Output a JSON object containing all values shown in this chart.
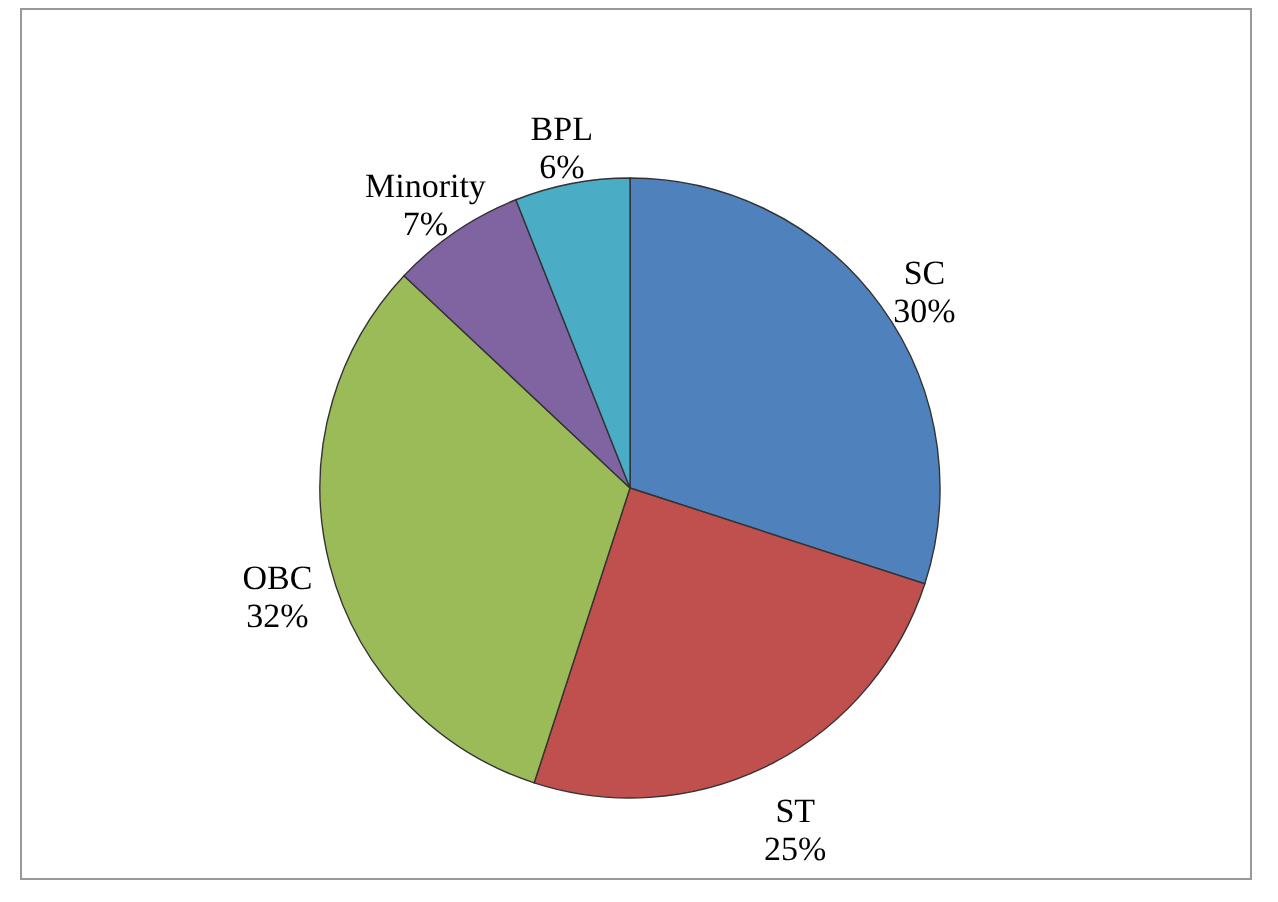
{
  "chart_data": {
    "type": "pie",
    "categories": [
      "SC",
      "ST",
      "OBC",
      "Minority",
      "BPL"
    ],
    "values": [
      30,
      25,
      32,
      7,
      6
    ],
    "colors": [
      "#4f81bd",
      "#c0504d",
      "#9bbb59",
      "#8064a2",
      "#4bacc6"
    ],
    "value_labels": [
      "30%",
      "25%",
      "32%",
      "7%",
      "6%"
    ]
  }
}
